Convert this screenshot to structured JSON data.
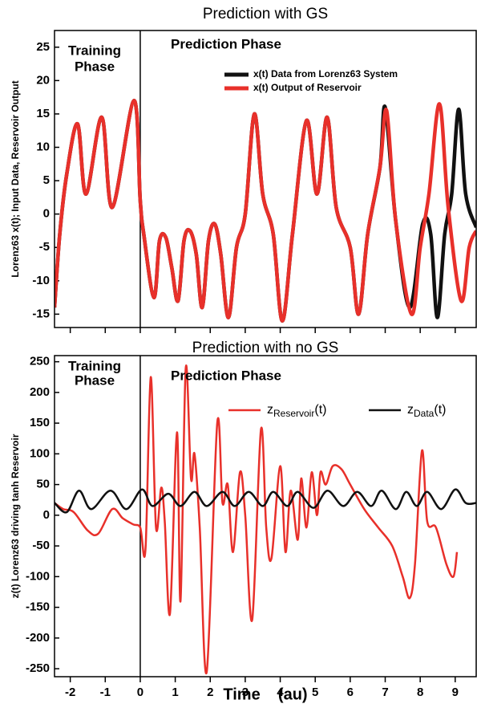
{
  "chart_data": [
    {
      "type": "line",
      "title": "Prediction with GS",
      "ylabel": "Lorenz63 x(t); Input Data, Reservoir Output",
      "annotations": [
        "Training",
        "Phase",
        "Prediction Phase"
      ],
      "phase_boundary": 0,
      "xlim": [
        -2.45,
        9.6
      ],
      "xticks": [
        -2,
        -1,
        0,
        1,
        2,
        3,
        4,
        5,
        6,
        7,
        8,
        9
      ],
      "ylim": [
        -17,
        27.5
      ],
      "yticks": [
        -15,
        -10,
        -5,
        0,
        5,
        10,
        15,
        20,
        25
      ],
      "legend": "top-right",
      "series": [
        {
          "name": "x(t) Data from  Lorenz63 System",
          "color": "#111111",
          "x": [
            -2.45,
            -2.3,
            -2.1,
            -1.79,
            -1.55,
            -1.1,
            -0.8,
            -0.18,
            0,
            0.1,
            0.39,
            0.55,
            0.73,
            0.9,
            1.08,
            1.25,
            1.42,
            1.6,
            1.77,
            1.95,
            2.13,
            2.3,
            2.52,
            2.75,
            3.0,
            3.26,
            3.5,
            3.8,
            4.06,
            4.35,
            4.75,
            5.05,
            5.34,
            5.6,
            6.0,
            6.24,
            6.5,
            6.85,
            7.0,
            7.3,
            7.7,
            8.07,
            8.3,
            8.49,
            8.7,
            8.9,
            9.1,
            9.3,
            9.6
          ],
          "values": [
            -14,
            -3,
            6,
            13.5,
            3,
            14.5,
            1,
            17,
            2,
            -3,
            -12.5,
            -4,
            -3.5,
            -8,
            -13,
            -4,
            -2.5,
            -6,
            -14,
            -4,
            -1.5,
            -6,
            -15.5,
            -5,
            0,
            15,
            3,
            -3,
            -16,
            -3,
            14,
            3,
            14.5,
            1,
            -5,
            -15,
            -3,
            7,
            16,
            -1,
            -14,
            -1.5,
            -3,
            -15.5,
            -3,
            3,
            15.7,
            3,
            -2
          ]
        },
        {
          "name": "x(t) Output of Reservoir",
          "color": "#e8302a",
          "x": [
            -2.45,
            -2.3,
            -2.1,
            -1.79,
            -1.55,
            -1.1,
            -0.8,
            -0.18,
            0,
            0.1,
            0.39,
            0.55,
            0.73,
            0.9,
            1.08,
            1.25,
            1.42,
            1.6,
            1.77,
            1.95,
            2.13,
            2.3,
            2.52,
            2.75,
            3.0,
            3.26,
            3.5,
            3.8,
            4.06,
            4.35,
            4.75,
            5.05,
            5.34,
            5.6,
            6.0,
            6.24,
            6.5,
            6.85,
            7.04,
            7.3,
            7.75,
            8.0,
            8.25,
            8.55,
            8.8,
            9.17,
            9.4,
            9.6
          ],
          "values": [
            -14,
            -3,
            6,
            13.5,
            3,
            14.5,
            1,
            17,
            2,
            -3,
            -12.5,
            -4,
            -3.5,
            -8,
            -13,
            -4,
            -2.5,
            -6,
            -14,
            -4,
            -1.5,
            -6,
            -15.5,
            -5,
            0,
            15,
            3,
            -3,
            -16,
            -3,
            14,
            3,
            14.5,
            1,
            -5,
            -15,
            -3,
            7,
            15.5,
            -1,
            -15,
            -5,
            3,
            16.5,
            1,
            -13,
            -5,
            -2.5
          ]
        }
      ]
    },
    {
      "type": "line",
      "title": "Prediction with no GS",
      "ylabel": "z(t)  Lorenz63 driving tanh Reservoir",
      "xlabel": "Time    (au)",
      "annotations": [
        "Training",
        "Phase",
        "Prediction Phase"
      ],
      "phase_boundary": 0,
      "xlim": [
        -2.45,
        9.6
      ],
      "xticks": [
        -2,
        -1,
        0,
        1,
        2,
        3,
        4,
        5,
        6,
        7,
        8,
        9
      ],
      "ylim": [
        -263,
        260
      ],
      "yticks": [
        -250,
        -200,
        -150,
        -100,
        -50,
        0,
        50,
        100,
        150,
        200,
        250
      ],
      "legend": "top-right",
      "series": [
        {
          "name": {
            "text": "z",
            "sub": "Reservoir",
            "suffix": "(t)"
          },
          "color": "#e8302a",
          "x": [
            -2.45,
            -2.2,
            -1.9,
            -1.5,
            -1.2,
            -0.8,
            -0.5,
            -0.2,
            0,
            0.15,
            0.3,
            0.45,
            0.6,
            0.7,
            0.85,
            1.05,
            1.15,
            1.3,
            1.45,
            1.55,
            1.7,
            1.9,
            2.2,
            2.35,
            2.5,
            2.65,
            2.85,
            3.0,
            3.2,
            3.45,
            3.6,
            3.75,
            4.0,
            4.15,
            4.3,
            4.5,
            4.6,
            4.75,
            4.9,
            5.05,
            5.15,
            5.3,
            5.5,
            5.75,
            6.0,
            6.4,
            6.8,
            7.2,
            7.5,
            7.7,
            7.85,
            8.05,
            8.2,
            8.45,
            8.75,
            8.95,
            9.05
          ],
          "values": [
            20,
            10,
            5,
            -25,
            -30,
            10,
            -5,
            -15,
            -20,
            -55,
            225,
            -20,
            45,
            -10,
            -160,
            135,
            -140,
            240,
            60,
            100,
            -20,
            -255,
            150,
            20,
            50,
            -60,
            70,
            0,
            -170,
            140,
            -20,
            -70,
            80,
            -60,
            40,
            -40,
            60,
            -20,
            70,
            0,
            70,
            50,
            80,
            75,
            50,
            10,
            -20,
            -50,
            -100,
            -135,
            -80,
            105,
            -10,
            -20,
            -80,
            -100,
            -60
          ]
        },
        {
          "name": {
            "text": "z",
            "sub": "Data",
            "suffix": "(t)"
          },
          "color": "#111111",
          "x": [
            -2.45,
            -2.1,
            -1.75,
            -1.4,
            -0.85,
            -0.4,
            0.05,
            0.35,
            0.8,
            1.15,
            1.55,
            1.9,
            2.35,
            2.7,
            3.1,
            3.5,
            3.8,
            4.2,
            4.5,
            4.95,
            5.35,
            5.8,
            6.2,
            6.6,
            6.9,
            7.3,
            7.6,
            7.9,
            8.2,
            8.6,
            9.0,
            9.3,
            9.6
          ],
          "values": [
            20,
            5,
            40,
            10,
            40,
            10,
            42,
            15,
            35,
            15,
            38,
            15,
            38,
            15,
            38,
            15,
            38,
            15,
            38,
            12,
            40,
            15,
            38,
            15,
            40,
            10,
            38,
            15,
            38,
            10,
            42,
            20,
            20
          ]
        }
      ]
    }
  ]
}
